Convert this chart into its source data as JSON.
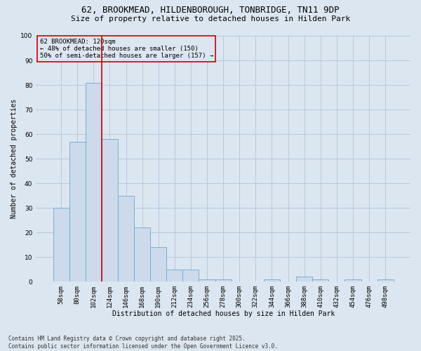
{
  "title_line1": "62, BROOKMEAD, HILDENBOROUGH, TONBRIDGE, TN11 9DP",
  "title_line2": "Size of property relative to detached houses in Hilden Park",
  "xlabel": "Distribution of detached houses by size in Hilden Park",
  "ylabel": "Number of detached properties",
  "categories": [
    "58sqm",
    "80sqm",
    "102sqm",
    "124sqm",
    "146sqm",
    "168sqm",
    "190sqm",
    "212sqm",
    "234sqm",
    "256sqm",
    "278sqm",
    "300sqm",
    "322sqm",
    "344sqm",
    "366sqm",
    "388sqm",
    "410sqm",
    "432sqm",
    "454sqm",
    "476sqm",
    "498sqm"
  ],
  "values": [
    30,
    57,
    81,
    58,
    35,
    22,
    14,
    5,
    5,
    1,
    1,
    0,
    0,
    1,
    0,
    2,
    1,
    0,
    1,
    0,
    1
  ],
  "bar_color": "#ccdaeb",
  "bar_edge_color": "#6aaad4",
  "bar_edge_width": 0.6,
  "grid_color": "#b8c8dc",
  "background_color": "#dce6f0",
  "annotation_box_text": "62 BROOKMEAD: 120sqm\n← 48% of detached houses are smaller (150)\n50% of semi-detached houses are larger (157) →",
  "annotation_box_color": "#cc0000",
  "vline_color": "#cc0000",
  "vline_x_index": 2,
  "ylim": [
    0,
    100
  ],
  "yticks": [
    0,
    10,
    20,
    30,
    40,
    50,
    60,
    70,
    80,
    90,
    100
  ],
  "footer_line1": "Contains HM Land Registry data © Crown copyright and database right 2025.",
  "footer_line2": "Contains public sector information licensed under the Open Government Licence v3.0.",
  "title_fontsize": 9,
  "subtitle_fontsize": 8,
  "axis_label_fontsize": 7,
  "tick_fontsize": 6.5,
  "annotation_fontsize": 6.5,
  "footer_fontsize": 5.5
}
